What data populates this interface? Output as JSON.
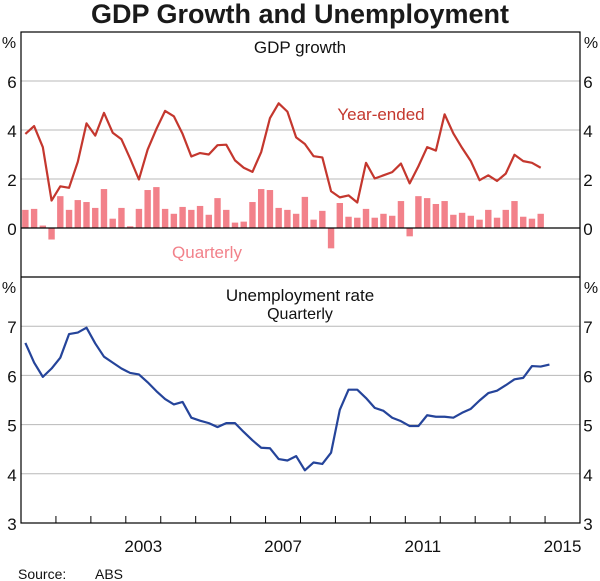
{
  "chart_data": [
    {
      "type": "bar+line",
      "title": "GDP growth",
      "ylabel": "%",
      "ylim": [
        -2,
        8
      ],
      "yticks": [
        0,
        2,
        4,
        6
      ],
      "xlim": [
        2000,
        2016
      ],
      "frequency": "quarterly",
      "start": "2000 Q1",
      "grid": true,
      "series": [
        {
          "name": "Year-ended",
          "type": "line",
          "color": "#c4372e",
          "values": [
            3.84,
            4.16,
            3.3,
            1.12,
            1.7,
            1.64,
            2.7,
            4.27,
            3.77,
            4.7,
            3.89,
            3.62,
            2.83,
            1.98,
            3.2,
            4.04,
            4.78,
            4.56,
            3.84,
            2.92,
            3.06,
            3.0,
            3.38,
            3.4,
            2.76,
            2.46,
            2.29,
            3.1,
            4.48,
            5.09,
            4.75,
            3.7,
            3.43,
            2.93,
            2.88,
            1.5,
            1.25,
            1.33,
            1.04,
            2.66,
            2.02,
            2.15,
            2.28,
            2.63,
            1.82,
            2.52,
            3.3,
            3.16,
            4.64,
            3.86,
            3.27,
            2.73,
            1.95,
            2.15,
            1.92,
            2.22,
            2.99,
            2.73,
            2.66,
            2.46
          ]
        },
        {
          "name": "Quarterly",
          "type": "bar",
          "color": "#f2818a",
          "values": [
            0.74,
            0.78,
            0.1,
            -0.47,
            1.3,
            0.74,
            1.14,
            1.06,
            0.82,
            1.59,
            0.38,
            0.82,
            0.07,
            0.78,
            1.55,
            1.67,
            0.78,
            0.58,
            0.86,
            0.74,
            0.9,
            0.54,
            1.22,
            0.74,
            0.22,
            0.26,
            1.06,
            1.59,
            1.55,
            0.82,
            0.74,
            0.58,
            1.27,
            0.34,
            0.7,
            -0.83,
            1.02,
            0.46,
            0.42,
            0.78,
            0.42,
            0.58,
            0.5,
            1.1,
            -0.34,
            1.3,
            1.22,
            0.98,
            1.1,
            0.54,
            0.62,
            0.5,
            0.34,
            0.74,
            0.42,
            0.74,
            1.1,
            0.46,
            0.38,
            0.58
          ]
        }
      ]
    },
    {
      "type": "line",
      "title": "Unemployment rate",
      "subtitle": "Quarterly",
      "ylabel": "%",
      "ylim": [
        3,
        8
      ],
      "yticks": [
        3,
        4,
        5,
        6,
        7
      ],
      "xlim": [
        2000,
        2016
      ],
      "frequency": "quarterly",
      "start": "2000 Q1",
      "grid": true,
      "series": [
        {
          "name": "Unemployment rate",
          "color": "#25449a",
          "values": [
            6.66,
            6.26,
            5.97,
            6.14,
            6.36,
            6.84,
            6.87,
            6.97,
            6.65,
            6.38,
            6.26,
            6.14,
            6.05,
            6.02,
            5.86,
            5.68,
            5.52,
            5.41,
            5.46,
            5.14,
            5.08,
            5.03,
            4.95,
            5.03,
            5.03,
            4.85,
            4.68,
            4.53,
            4.52,
            4.3,
            4.27,
            4.36,
            4.07,
            4.23,
            4.2,
            4.43,
            5.3,
            5.71,
            5.71,
            5.54,
            5.34,
            5.28,
            5.14,
            5.07,
            4.97,
            4.97,
            5.19,
            5.16,
            5.16,
            5.14,
            5.24,
            5.32,
            5.49,
            5.64,
            5.69,
            5.8,
            5.92,
            5.95,
            6.19,
            6.18,
            6.22
          ]
        }
      ]
    }
  ],
  "header": {
    "title": "GDP Growth and Unemployment"
  },
  "x_tick_labels": [
    "2003",
    "2007",
    "2011",
    "2015"
  ],
  "x_tick_label_years": [
    2003,
    2007,
    2011,
    2015
  ],
  "unit_label": "%",
  "footer": {
    "source_label": "Source:",
    "source_value": "ABS"
  }
}
